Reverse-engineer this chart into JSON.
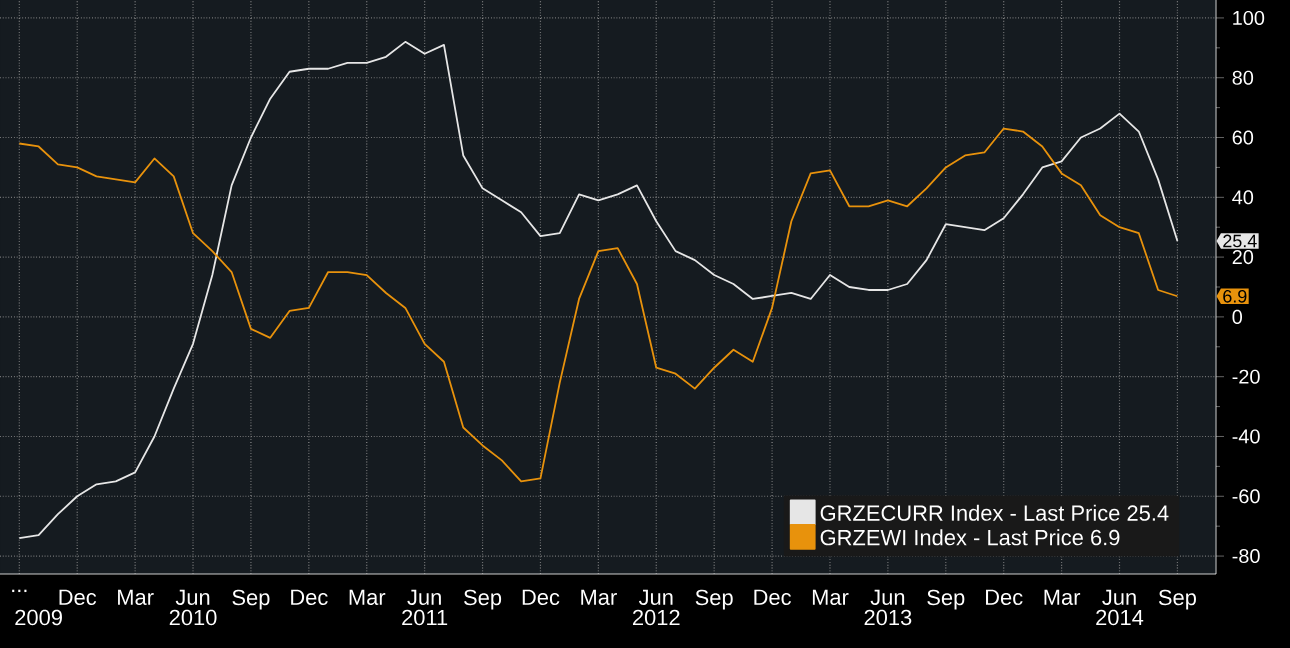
{
  "chart_data": {
    "type": "line",
    "x": [
      "2009-09",
      "2009-10",
      "2009-11",
      "2009-12",
      "2010-01",
      "2010-02",
      "2010-03",
      "2010-04",
      "2010-05",
      "2010-06",
      "2010-07",
      "2010-08",
      "2010-09",
      "2010-10",
      "2010-11",
      "2010-12",
      "2011-01",
      "2011-02",
      "2011-03",
      "2011-04",
      "2011-05",
      "2011-06",
      "2011-07",
      "2011-08",
      "2011-09",
      "2011-10",
      "2011-11",
      "2011-12",
      "2012-01",
      "2012-02",
      "2012-03",
      "2012-04",
      "2012-05",
      "2012-06",
      "2012-07",
      "2012-08",
      "2012-09",
      "2012-10",
      "2012-11",
      "2012-12",
      "2013-01",
      "2013-02",
      "2013-03",
      "2013-04",
      "2013-05",
      "2013-06",
      "2013-07",
      "2013-08",
      "2013-09",
      "2013-10",
      "2013-11",
      "2013-12",
      "2014-01",
      "2014-02",
      "2014-03",
      "2014-04",
      "2014-05",
      "2014-06",
      "2014-07",
      "2014-08",
      "2014-09"
    ],
    "series": [
      {
        "name": "GRZECURR Index - Last Price 25.4",
        "color": "#e6e6e6",
        "values": [
          -74,
          -73,
          -66,
          -60,
          -56,
          -55,
          -52,
          -40,
          -24,
          -9,
          14,
          44,
          60,
          73,
          82,
          83,
          83,
          85,
          85,
          87,
          92,
          88,
          91,
          54,
          43,
          39,
          35,
          27,
          28,
          41,
          39,
          41,
          44,
          32,
          22,
          19,
          14,
          11,
          6,
          7,
          8,
          6,
          14,
          10,
          9,
          9,
          11,
          19,
          31,
          30,
          29,
          33,
          41,
          50,
          52,
          60,
          63,
          68,
          62,
          46,
          25.4
        ]
      },
      {
        "name": "GRZEWI Index - Last Price 6.9",
        "color": "#e8920c",
        "values": [
          58,
          57,
          51,
          50,
          47,
          46,
          45,
          53,
          47,
          28,
          22,
          15,
          -4,
          -7,
          2,
          3,
          15,
          15,
          14,
          8,
          3,
          -9,
          -15,
          -37,
          -43,
          -48,
          -55,
          -54,
          -22,
          6,
          22,
          23,
          11,
          -17,
          -19,
          -24,
          -17,
          -11,
          -15,
          3,
          32,
          48,
          49,
          37,
          37,
          39,
          37,
          43,
          50,
          54,
          55,
          63,
          62,
          57,
          48,
          44,
          34,
          30,
          28,
          9,
          6.9
        ]
      }
    ],
    "xlim": [
      "2009-08",
      "2014-11"
    ],
    "xticks": [
      {
        "value": "2009-09",
        "label": "..."
      },
      {
        "value": "2009-12",
        "label": "Dec"
      },
      {
        "value": "2010-03",
        "label": "Mar"
      },
      {
        "value": "2010-06",
        "label": "Jun"
      },
      {
        "value": "2010-09",
        "label": "Sep"
      },
      {
        "value": "2010-12",
        "label": "Dec"
      },
      {
        "value": "2011-03",
        "label": "Mar"
      },
      {
        "value": "2011-06",
        "label": "Jun"
      },
      {
        "value": "2011-09",
        "label": "Sep"
      },
      {
        "value": "2011-12",
        "label": "Dec"
      },
      {
        "value": "2012-03",
        "label": "Mar"
      },
      {
        "value": "2012-06",
        "label": "Jun"
      },
      {
        "value": "2012-09",
        "label": "Sep"
      },
      {
        "value": "2012-12",
        "label": "Dec"
      },
      {
        "value": "2013-03",
        "label": "Mar"
      },
      {
        "value": "2013-06",
        "label": "Jun"
      },
      {
        "value": "2013-09",
        "label": "Sep"
      },
      {
        "value": "2013-12",
        "label": "Dec"
      },
      {
        "value": "2014-03",
        "label": "Mar"
      },
      {
        "value": "2014-06",
        "label": "Jun"
      },
      {
        "value": "2014-09",
        "label": "Sep"
      }
    ],
    "x2lim": [
      "2009-08",
      "2014-11"
    ],
    "x2ticks": [
      {
        "value": "2009-10",
        "label": "2009"
      },
      {
        "value": "2010-06",
        "label": "2010"
      },
      {
        "value": "2011-06",
        "label": "2011"
      },
      {
        "value": "2012-06",
        "label": "2012"
      },
      {
        "value": "2013-06",
        "label": "2013"
      },
      {
        "value": "2014-06",
        "label": "2014"
      }
    ],
    "ylim": [
      -86,
      106
    ],
    "yticks": [
      -80,
      -60,
      -40,
      -20,
      0,
      20,
      40,
      60,
      80,
      100
    ],
    "annotations": [
      {
        "text": "25.4",
        "x": "2014-09",
        "y": 25.4
      },
      {
        "text": "6.9",
        "x": "2014-09",
        "y": 6.9
      }
    ],
    "grid": true,
    "legend": "bottom right",
    "marker": "none",
    "line_style": "solid"
  }
}
